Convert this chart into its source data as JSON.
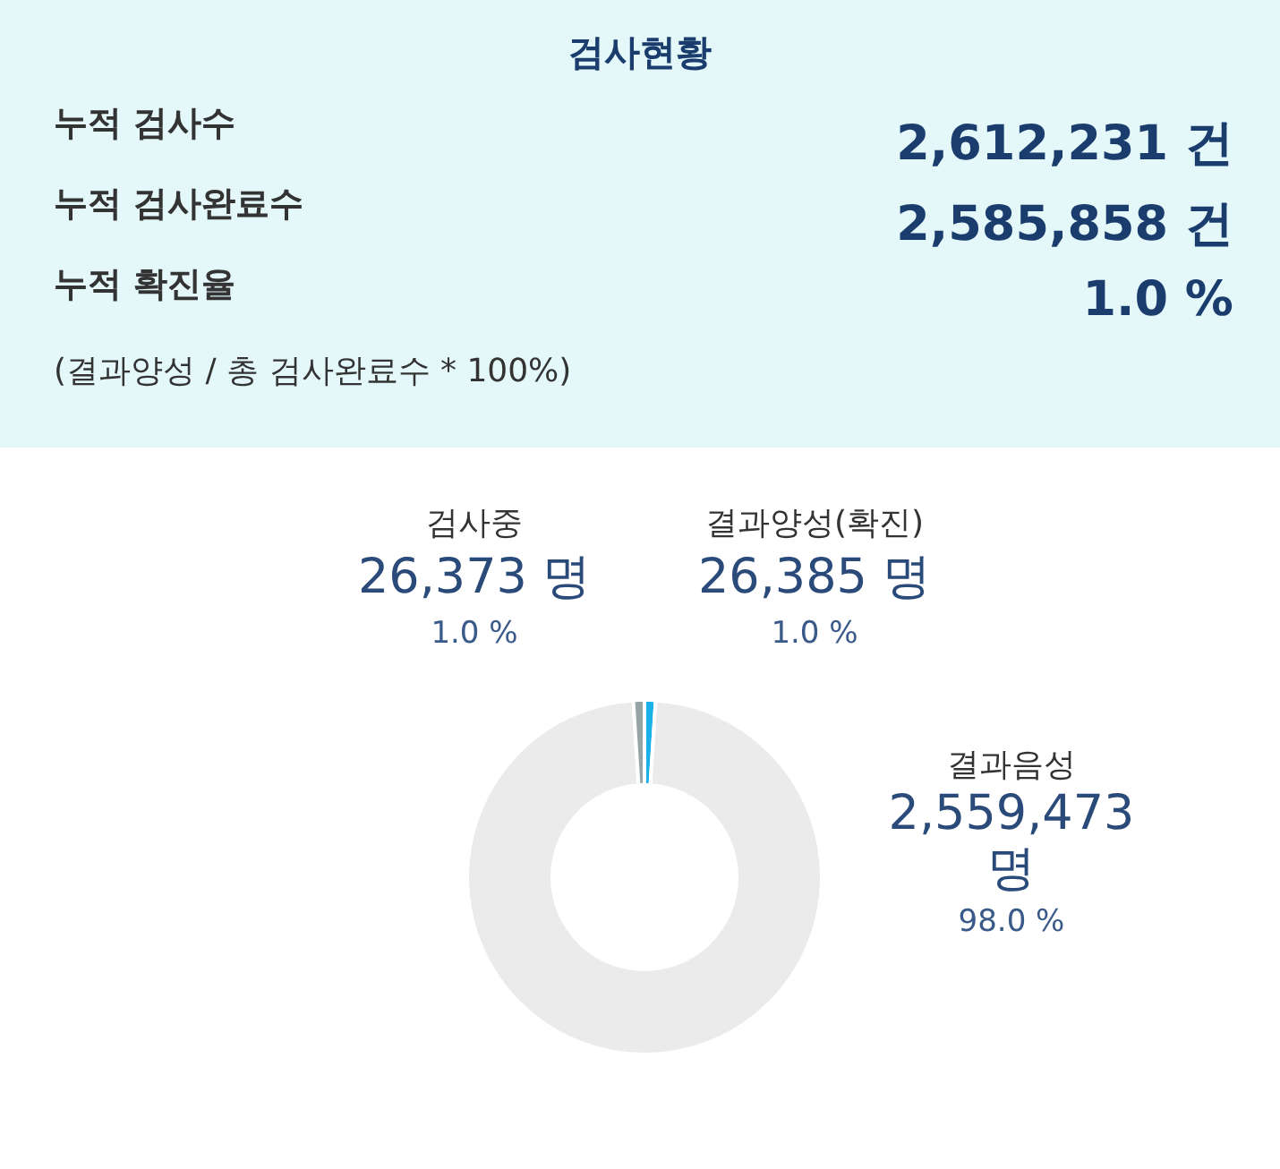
{
  "chart_data": [
    {
      "type": "other",
      "title": "검사현황",
      "annotations": [
        "누적 검사수",
        "2,612,231 건",
        "누적 검사완료수",
        "2,585,858 건",
        "누적 확진율",
        "1.0 %",
        "(결과양성 / 총 검사완료수 * 100%)"
      ]
    },
    {
      "type": "donut",
      "categories": [
        "결과양성(확진)",
        "결과음성",
        "검사중"
      ],
      "values": [
        26385,
        2559473,
        26373
      ],
      "colors": [
        "#1ab0e8",
        "#ebebeb",
        "#95a5a6"
      ],
      "value_labels": [
        "26,385 명",
        "2,559,473 명",
        "26,373 명"
      ],
      "annotations": [
        {
          "text": "1.0 %",
          "x": "결과양성(확진)"
        },
        {
          "text": "98.0 %",
          "x": "결과음성"
        },
        {
          "text": "1.0 %",
          "x": "검사중"
        }
      ],
      "legend": false
    }
  ]
}
